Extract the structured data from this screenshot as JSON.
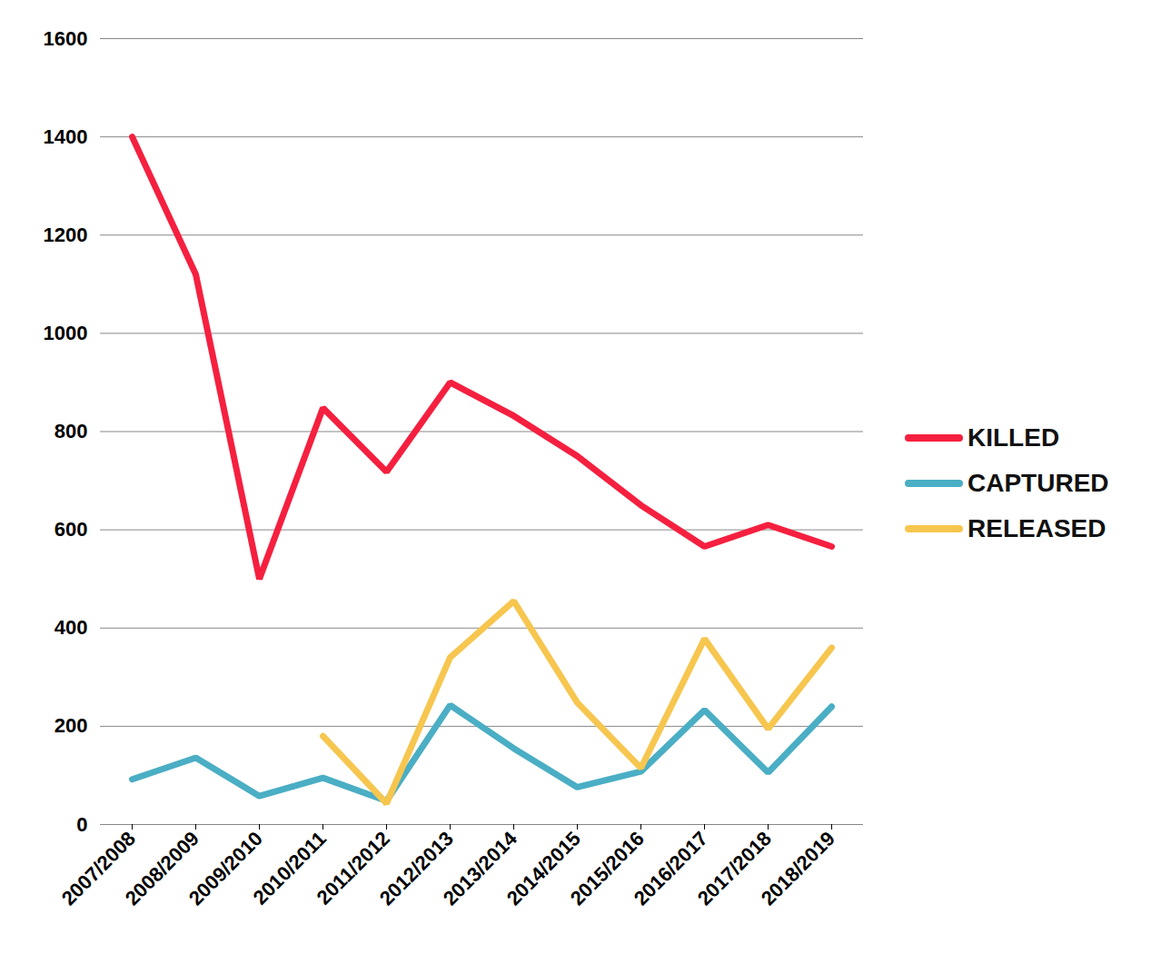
{
  "chart_data": {
    "type": "line",
    "categories": [
      "2007/2008",
      "2008/2009",
      "2009/2010",
      "2010/2011",
      "2011/2012",
      "2012/2013",
      "2013/2014",
      "2014/2015",
      "2015/2016",
      "2016/2017",
      "2017/2018",
      "2018/2019"
    ],
    "series": [
      {
        "name": "KILLED",
        "color": "#f5203f",
        "values": [
          1400,
          1120,
          500,
          848,
          718,
          900,
          832,
          750,
          650,
          566,
          610,
          566
        ]
      },
      {
        "name": "CAPTURED",
        "color": "#4aaec4",
        "values": [
          92,
          136,
          58,
          95,
          48,
          243,
          155,
          76,
          108,
          233,
          106,
          240
        ]
      },
      {
        "name": "RELEASED",
        "color": "#f7c64f",
        "values": [
          null,
          null,
          null,
          180,
          43,
          340,
          455,
          248,
          115,
          378,
          195,
          360
        ]
      }
    ],
    "ylim": [
      0,
      1600
    ],
    "yticks": [
      0,
      200,
      400,
      600,
      800,
      1000,
      1200,
      1400,
      1600
    ],
    "grid": true,
    "legend": "right"
  }
}
